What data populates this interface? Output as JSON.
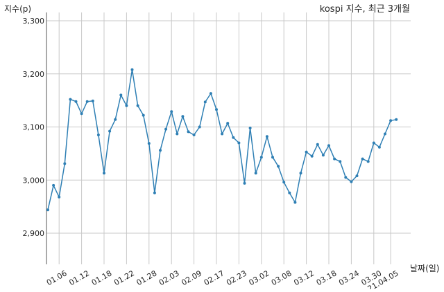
{
  "chart_data": {
    "type": "line",
    "title": "kospi 지수, 최근 3개월",
    "xlabel": "날짜(일)",
    "ylabel": "지수(p)",
    "ylim": [
      2880,
      3310
    ],
    "yticks": [
      2900,
      3000,
      3100,
      3200,
      3300
    ],
    "ytick_labels": [
      "2,900",
      "3,000",
      "3,100",
      "3,200",
      "3,300"
    ],
    "xticks": [
      {
        "index": 2,
        "label": "01.06"
      },
      {
        "index": 6,
        "label": "01.12"
      },
      {
        "index": 10,
        "label": "01.18"
      },
      {
        "index": 14,
        "label": "01.22"
      },
      {
        "index": 18,
        "label": "01.28"
      },
      {
        "index": 22,
        "label": "02.03"
      },
      {
        "index": 26,
        "label": "02.09"
      },
      {
        "index": 30,
        "label": "02.17"
      },
      {
        "index": 34,
        "label": "02.23"
      },
      {
        "index": 38,
        "label": "03.02"
      },
      {
        "index": 42,
        "label": "03.08"
      },
      {
        "index": 46,
        "label": "03.12"
      },
      {
        "index": 50,
        "label": "03.18"
      },
      {
        "index": 54,
        "label": "03.24"
      },
      {
        "index": 58,
        "label": "03.30"
      },
      {
        "index": 61,
        "label": "21.04.05"
      }
    ],
    "grid": true,
    "color": "#2e7fb4",
    "series": [
      {
        "values": [
          2944,
          2990,
          2968,
          3031,
          3152,
          3148,
          3125,
          3148,
          3149,
          3085,
          3013,
          3092,
          3114,
          3160,
          3140,
          3208,
          3140,
          3122,
          3069,
          2976,
          3056,
          3096,
          3129,
          3087,
          3120,
          3091,
          3085,
          3100,
          3147,
          3163,
          3133,
          3087,
          3107,
          3080,
          3070,
          2994,
          3098,
          3013,
          3043,
          3082,
          3043,
          3026,
          2996,
          2976,
          2958,
          3013,
          3053,
          3045,
          3067,
          3047,
          3065,
          3040,
          3035,
          3005,
          2997,
          3008,
          3040,
          3035,
          3070,
          3062,
          3087,
          3112,
          3114
        ]
      }
    ]
  }
}
